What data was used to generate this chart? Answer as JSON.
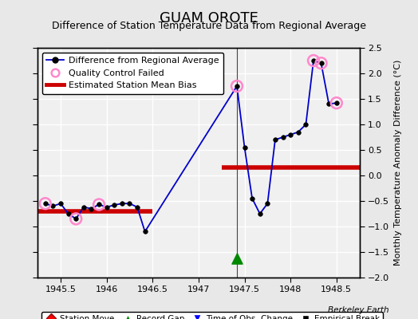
{
  "title": "GUAM OROTE",
  "subtitle": "Difference of Station Temperature Data from Regional Average",
  "ylabel": "Monthly Temperature Anomaly Difference (°C)",
  "xlabel_bottom": "Berkeley Earth",
  "xlim": [
    1945.25,
    1948.75
  ],
  "ylim": [
    -2.0,
    2.5
  ],
  "yticks": [
    -2.0,
    -1.5,
    -1.0,
    -0.5,
    0.0,
    0.5,
    1.0,
    1.5,
    2.0,
    2.5
  ],
  "xticks": [
    1945.5,
    1946.0,
    1946.5,
    1947.0,
    1947.5,
    1948.0,
    1948.5
  ],
  "xtick_labels": [
    "1945.5",
    "1946",
    "1946.5",
    "1947",
    "1947.5",
    "1948",
    "1948.5"
  ],
  "line_x": [
    1945.333,
    1945.417,
    1945.5,
    1945.583,
    1945.667,
    1945.75,
    1945.833,
    1945.917,
    1946.0,
    1946.083,
    1946.167,
    1946.25,
    1946.333,
    1946.417,
    1947.417,
    1947.5,
    1947.583,
    1947.667,
    1947.75,
    1947.833,
    1947.917,
    1948.0,
    1948.083,
    1948.167,
    1948.25,
    1948.333,
    1948.417,
    1948.5
  ],
  "line_y": [
    -0.55,
    -0.6,
    -0.55,
    -0.75,
    -0.85,
    -0.62,
    -0.65,
    -0.57,
    -0.62,
    -0.58,
    -0.55,
    -0.55,
    -0.62,
    -1.1,
    1.75,
    0.55,
    -0.45,
    -0.75,
    -0.55,
    0.7,
    0.75,
    0.8,
    0.85,
    1.0,
    2.25,
    2.2,
    1.4,
    1.42
  ],
  "qc_x": [
    1945.333,
    1945.667,
    1945.917,
    1947.417,
    1948.25,
    1948.333,
    1948.5
  ],
  "qc_y": [
    -0.55,
    -0.85,
    -0.57,
    1.75,
    2.25,
    2.2,
    1.42
  ],
  "bias_segments": [
    {
      "x": [
        1945.25,
        1946.5
      ],
      "y": [
        -0.7,
        -0.7
      ]
    },
    {
      "x": [
        1947.25,
        1948.75
      ],
      "y": [
        0.15,
        0.15
      ]
    }
  ],
  "gap_marker_x": 1947.417,
  "gap_marker_y": -1.62,
  "vertical_line_x": 1947.417,
  "line_color": "#0000cc",
  "line_marker_color": "#000000",
  "qc_color": "#ff88cc",
  "bias_color": "#cc0000",
  "gap_color": "#008800",
  "bg_color": "#e8e8e8",
  "plot_bg_color": "#f0f0f0",
  "grid_color": "#ffffff",
  "title_fontsize": 13,
  "subtitle_fontsize": 9,
  "tick_fontsize": 8,
  "ylabel_fontsize": 8
}
